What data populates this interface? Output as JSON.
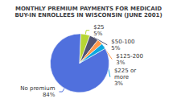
{
  "chart_data": {
    "type": "pie",
    "title": "MONTHLY PREMIUM PAYMENTS FOR MEDICAID\nBUY-IN ENROLLEES IN WISCONSIN (JUNE 2001)",
    "categories": [
      "No premium",
      "$25",
      "$50-100",
      "$125-200",
      "$225 or\nmore"
    ],
    "values": [
      84,
      5,
      5,
      3,
      3
    ],
    "value_labels": [
      "84%",
      "5%",
      "5%",
      "3%",
      "3%"
    ],
    "data_labels": true
  }
}
